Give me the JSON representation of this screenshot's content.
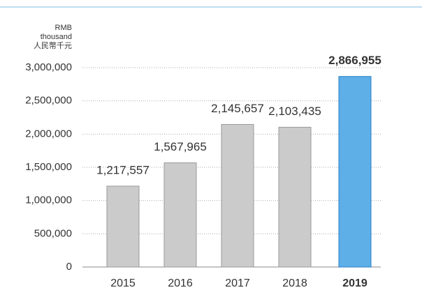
{
  "chart_data": {
    "type": "bar",
    "ylabel": [
      "RMB",
      "thousand",
      "人民幣千元"
    ],
    "categories": [
      "2015",
      "2016",
      "2017",
      "2018",
      "2019"
    ],
    "values": [
      1217557,
      1567965,
      2145657,
      2103435,
      2866955
    ],
    "value_labels": [
      "1,217,557",
      "1,567,965",
      "2,145,657",
      "2,103,435",
      "2,866,955"
    ],
    "colors": [
      "#cbcbcb",
      "#cbcbcb",
      "#cbcbcb",
      "#cbcbcb",
      "#5eaee8"
    ],
    "ylim": [
      0,
      3000000
    ],
    "yticks": [
      0,
      {
        "value": 500000,
        "label": "500,000"
      },
      {
        "value": 1000000,
        "label": "1,000,000"
      },
      {
        "value": 1500000,
        "label": "1,500,000"
      },
      {
        "value": 2000000,
        "label": "2,000,000"
      },
      {
        "value": 2500000,
        "label": "2,500,000"
      },
      {
        "value": 3000000,
        "label": "3,000,000"
      }
    ],
    "grid": true
  }
}
